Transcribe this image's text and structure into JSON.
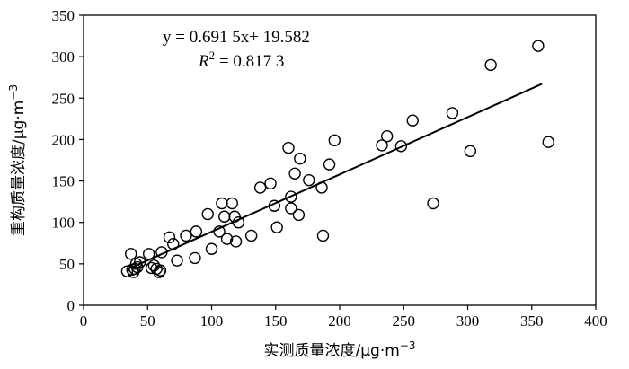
{
  "chart_data": {
    "type": "scatter",
    "xlabel": "实测质量浓度/μg·m",
    "xlabel_sup": "−3",
    "ylabel": "重构质量浓度/μg·m",
    "ylabel_sup": "−3",
    "xlim": [
      0,
      400
    ],
    "ylim": [
      0,
      350
    ],
    "xticks": [
      0,
      50,
      100,
      150,
      200,
      250,
      300,
      350,
      400
    ],
    "yticks": [
      0,
      50,
      100,
      150,
      200,
      250,
      300,
      350
    ],
    "grid": false,
    "marker": "open-circle",
    "annotation": {
      "line1": "y = 0.691 5x+ 19.582",
      "line2_prefix": "R",
      "line2_sup": "2",
      "line2_suffix": " = 0.817 3"
    },
    "trendline": {
      "slope": 0.6915,
      "intercept": 19.582,
      "x_range": [
        38,
        358
      ]
    },
    "points": [
      [
        34,
        41
      ],
      [
        37,
        62
      ],
      [
        38,
        43
      ],
      [
        39,
        40
      ],
      [
        40,
        44
      ],
      [
        41,
        50
      ],
      [
        42,
        46
      ],
      [
        44,
        52
      ],
      [
        51,
        62
      ],
      [
        53,
        45
      ],
      [
        55,
        48
      ],
      [
        57,
        44
      ],
      [
        59,
        40
      ],
      [
        60,
        42
      ],
      [
        61,
        64
      ],
      [
        67,
        82
      ],
      [
        70,
        74
      ],
      [
        73,
        54
      ],
      [
        80,
        84
      ],
      [
        87,
        57
      ],
      [
        88,
        89
      ],
      [
        97,
        110
      ],
      [
        100,
        68
      ],
      [
        106,
        89
      ],
      [
        108,
        123
      ],
      [
        110,
        107
      ],
      [
        112,
        80
      ],
      [
        116,
        123
      ],
      [
        118,
        107
      ],
      [
        119,
        77
      ],
      [
        121,
        100
      ],
      [
        131,
        84
      ],
      [
        138,
        142
      ],
      [
        146,
        147
      ],
      [
        149,
        120
      ],
      [
        151,
        94
      ],
      [
        160,
        190
      ],
      [
        162,
        117
      ],
      [
        162,
        131
      ],
      [
        165,
        159
      ],
      [
        168,
        109
      ],
      [
        169,
        177
      ],
      [
        176,
        151
      ],
      [
        186,
        142
      ],
      [
        187,
        84
      ],
      [
        192,
        170
      ],
      [
        196,
        199
      ],
      [
        233,
        193
      ],
      [
        237,
        204
      ],
      [
        248,
        192
      ],
      [
        257,
        223
      ],
      [
        273,
        123
      ],
      [
        288,
        232
      ],
      [
        302,
        186
      ],
      [
        318,
        290
      ],
      [
        355,
        313
      ],
      [
        363,
        197
      ]
    ]
  }
}
